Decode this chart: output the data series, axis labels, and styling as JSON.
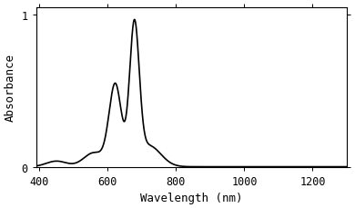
{
  "xlim": [
    390,
    1300
  ],
  "ylim": [
    0,
    1.05
  ],
  "xticks": [
    400,
    600,
    800,
    1000,
    1200
  ],
  "yticks": [
    0,
    1
  ],
  "xlabel": "Wavelength (nm)",
  "ylabel": "Absorbance",
  "line_color": "#000000",
  "line_width": 1.2,
  "background_color": "#ffffff",
  "font_family": "monospace",
  "tick_fontsize": 8.5,
  "label_fontsize": 9
}
